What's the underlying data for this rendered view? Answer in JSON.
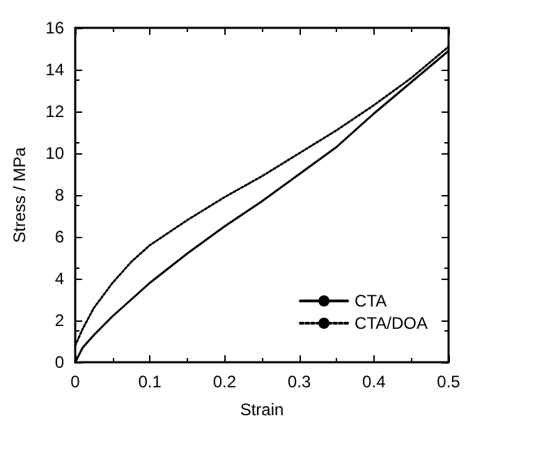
{
  "chart_data": {
    "type": "line",
    "xlabel": "Strain",
    "ylabel": "Stress / MPa",
    "xlim": [
      0,
      0.5
    ],
    "xticks": [
      0,
      0.1,
      0.2,
      0.3,
      0.4,
      0.5
    ],
    "ylim": [
      0,
      16
    ],
    "yticks": [
      0,
      2,
      4,
      6,
      8,
      10,
      12,
      14,
      16
    ],
    "grid": false,
    "legend": "bottom right",
    "marker": "none",
    "series": [
      {
        "name": "CTA",
        "color": "#000000",
        "line_style": "solid",
        "x": [
          0,
          0.01,
          0.025,
          0.05,
          0.075,
          0.1,
          0.15,
          0.2,
          0.25,
          0.3,
          0.35,
          0.4,
          0.45,
          0.5
        ],
        "values": [
          0,
          0.7,
          1.3,
          2.2,
          3.0,
          3.8,
          5.2,
          6.5,
          7.7,
          9.0,
          10.3,
          11.9,
          13.4,
          14.9
        ]
      },
      {
        "name": "CTA/DOA",
        "color": "#000000",
        "line_style": "dotted",
        "x": [
          0,
          0.01,
          0.025,
          0.05,
          0.075,
          0.1,
          0.15,
          0.2,
          0.25,
          0.3,
          0.35,
          0.4,
          0.45,
          0.5
        ],
        "values": [
          0.8,
          1.6,
          2.6,
          3.8,
          4.8,
          5.6,
          6.8,
          7.9,
          8.9,
          10.0,
          11.1,
          12.3,
          13.6,
          15.1
        ]
      }
    ]
  }
}
